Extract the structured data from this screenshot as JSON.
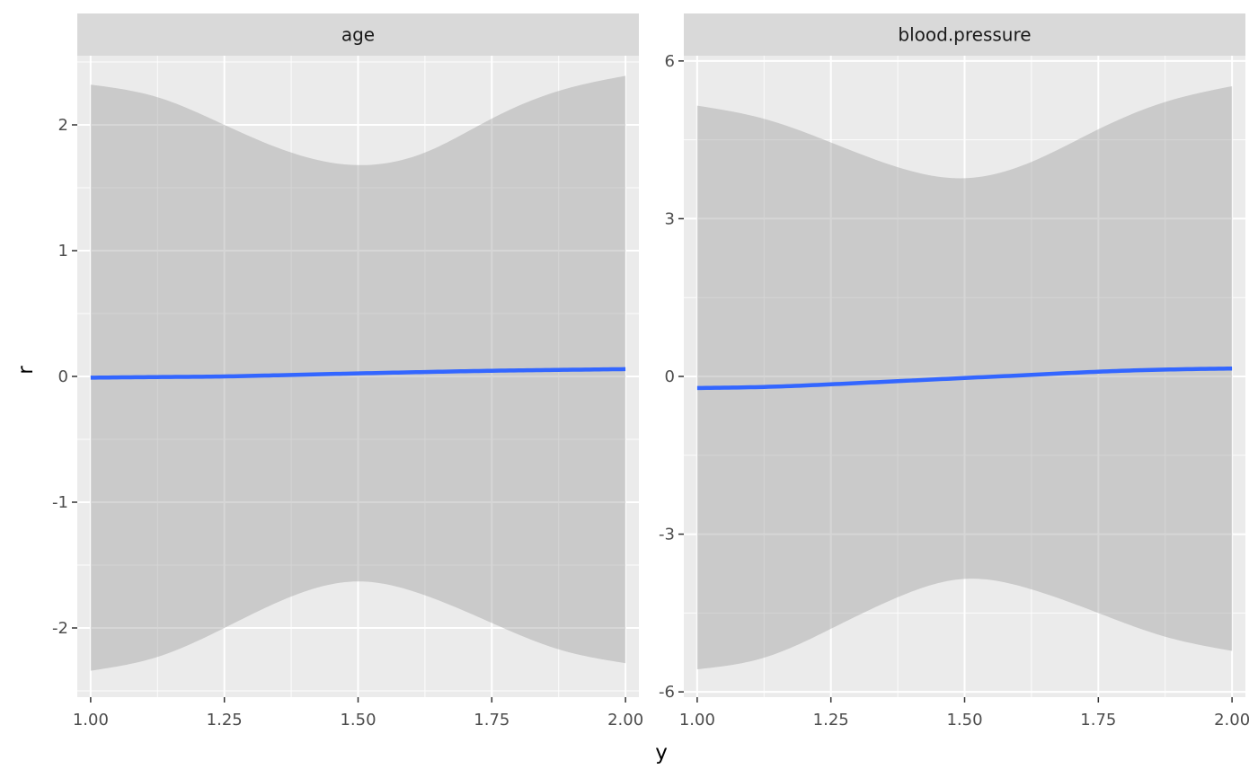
{
  "chart_data": {
    "type": "line",
    "xlabel": "y",
    "ylabel": "r",
    "line_color": "#3366FF",
    "ribbon_color": "#999999",
    "facets": [
      {
        "name": "age",
        "xlim": [
          0.975,
          2.025
        ],
        "ylim": [
          -2.55,
          2.55
        ],
        "x_breaks": [
          1.0,
          1.25,
          1.5,
          1.75,
          2.0
        ],
        "x_tick_labels": [
          "1.00",
          "1.25",
          "1.50",
          "1.75",
          "2.00"
        ],
        "y_breaks": [
          -2,
          -1,
          0,
          1,
          2
        ],
        "y_tick_labels": [
          "-2",
          "-1",
          "0",
          "1",
          "2"
        ],
        "x": [
          1.0,
          1.125,
          1.25,
          1.375,
          1.5,
          1.625,
          1.75,
          1.875,
          2.0
        ],
        "fit": [
          -0.01,
          -0.005,
          0.0,
          0.012,
          0.024,
          0.035,
          0.045,
          0.052,
          0.058
        ],
        "upper": [
          2.32,
          2.22,
          2.0,
          1.78,
          1.68,
          1.78,
          2.05,
          2.27,
          2.39
        ],
        "lower": [
          -2.34,
          -2.23,
          -2.0,
          -1.75,
          -1.63,
          -1.74,
          -1.96,
          -2.17,
          -2.28
        ]
      },
      {
        "name": "blood.pressure",
        "xlim": [
          0.975,
          2.025
        ],
        "ylim": [
          -6.1,
          6.1
        ],
        "x_breaks": [
          1.0,
          1.25,
          1.5,
          1.75,
          2.0
        ],
        "x_tick_labels": [
          "1.00",
          "1.25",
          "1.50",
          "1.75",
          "2.00"
        ],
        "y_breaks": [
          -6,
          -3,
          0,
          3,
          6
        ],
        "y_tick_labels": [
          "-6",
          "-3",
          "0",
          "3",
          "6"
        ],
        "x": [
          1.0,
          1.125,
          1.25,
          1.375,
          1.5,
          1.625,
          1.75,
          1.875,
          2.0
        ],
        "fit": [
          -0.22,
          -0.2,
          -0.15,
          -0.09,
          -0.03,
          0.03,
          0.09,
          0.13,
          0.15
        ],
        "upper": [
          5.15,
          4.9,
          4.45,
          3.98,
          3.77,
          4.08,
          4.7,
          5.22,
          5.52
        ],
        "lower": [
          -5.57,
          -5.35,
          -4.8,
          -4.2,
          -3.85,
          -4.05,
          -4.5,
          -4.95,
          -5.22
        ]
      }
    ]
  }
}
